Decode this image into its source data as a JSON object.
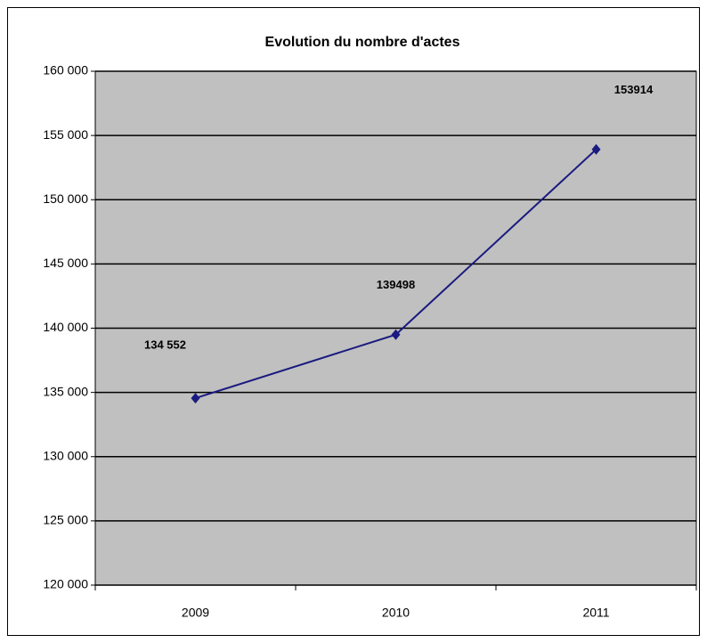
{
  "chart_data": {
    "type": "line",
    "title": "Evolution du nombre d'actes",
    "categories": [
      "2009",
      "2010",
      "2011"
    ],
    "series": [
      {
        "name": null,
        "color": "#1a1a80",
        "values": [
          134552,
          139498,
          153914
        ],
        "value_labels": [
          "134 552",
          "139498",
          "153914"
        ]
      }
    ],
    "ylim": [
      120000,
      160000
    ],
    "yticks": [
      {
        "value": 120000,
        "label": "120 000"
      },
      {
        "value": 125000,
        "label": "125 000"
      },
      {
        "value": 130000,
        "label": "130 000"
      },
      {
        "value": 135000,
        "label": "135 000"
      },
      {
        "value": 140000,
        "label": "140 000"
      },
      {
        "value": 145000,
        "label": "145 000"
      },
      {
        "value": 150000,
        "label": "150 000"
      },
      {
        "value": 155000,
        "label": "155 000"
      },
      {
        "value": 160000,
        "label": "160 000"
      }
    ],
    "grid": true,
    "plot_background": "#c0c0c0"
  }
}
